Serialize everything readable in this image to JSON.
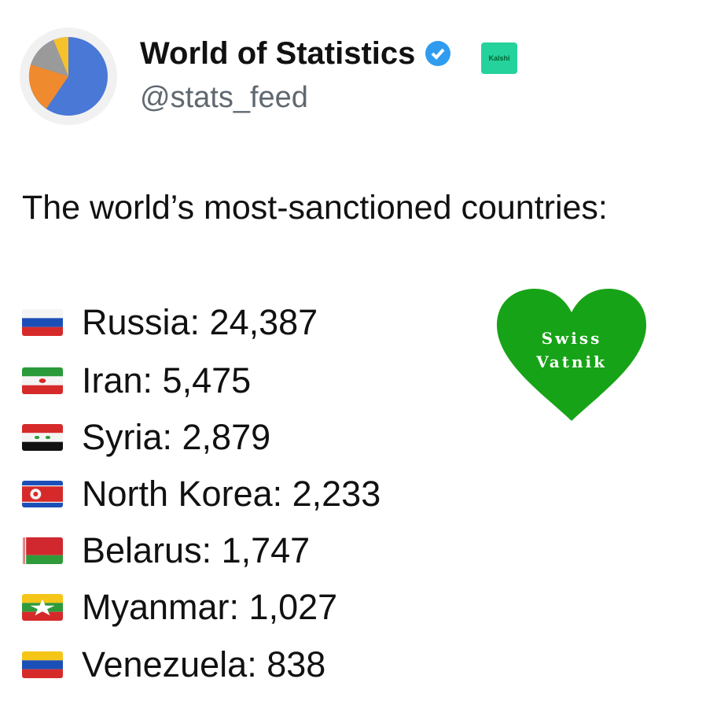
{
  "header": {
    "name": "World of Statistics",
    "badge": "Kalshi",
    "handle": "@stats_feed"
  },
  "post": {
    "text": "The world’s most-sanctioned countries:",
    "items": [
      "Russia: 24,387",
      "Iran: 5,475",
      "Syria: 2,879",
      "North Korea: 2,233",
      "Belarus: 1,747",
      "Myanmar: 1,027",
      "Venezuela: 838"
    ]
  },
  "sticker": {
    "lines": [
      "Swiss",
      "Vatnik"
    ]
  }
}
